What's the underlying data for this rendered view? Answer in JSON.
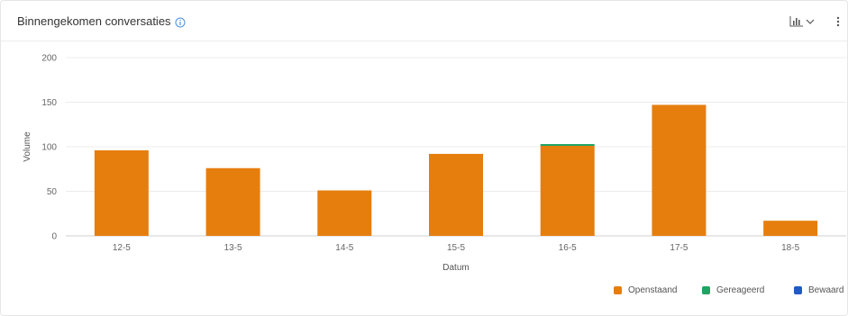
{
  "header": {
    "title": "Binnengekomen conversaties"
  },
  "chart_data": {
    "type": "bar",
    "stacked": true,
    "xlabel": "Datum",
    "ylabel": "Volume",
    "ylim": [
      0,
      200
    ],
    "yticks": [
      0,
      50,
      100,
      150,
      200
    ],
    "grid": true,
    "legend_position": "bottom-right",
    "categories": [
      "12-5",
      "13-5",
      "14-5",
      "15-5",
      "16-5",
      "17-5",
      "18-5"
    ],
    "series": [
      {
        "name": "Openstaand",
        "color": "#E67E0E",
        "values": [
          96,
          76,
          51,
          92,
          101,
          147,
          17
        ]
      },
      {
        "name": "Gereageerd",
        "color": "#1FA463",
        "values": [
          0,
          0,
          0,
          0,
          2,
          0,
          0
        ]
      },
      {
        "name": "Bewaard",
        "color": "#1F5BC4",
        "values": [
          0,
          0,
          0,
          0,
          0,
          0,
          0
        ]
      }
    ]
  }
}
